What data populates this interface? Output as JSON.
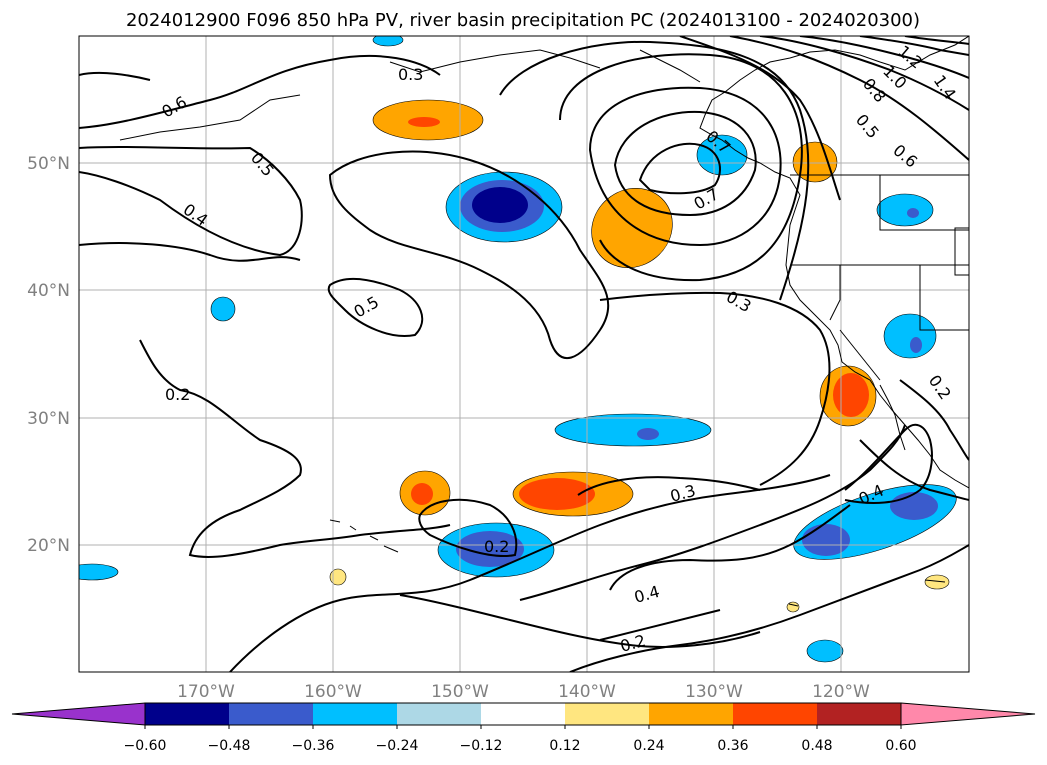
{
  "title": "2024012900 F096 850 hPa PV, river basin precipitation PC (2024013100 - 2024020300)",
  "chart_data": {
    "type": "heatmap",
    "map_projection": "lat-lon",
    "lon_range": [
      -180,
      -110
    ],
    "lat_range": [
      10,
      60
    ],
    "lat_ticks": [
      "50°N",
      "40°N",
      "30°N",
      "20°N"
    ],
    "lon_ticks": [
      "170°W",
      "160°W",
      "150°W",
      "140°W",
      "130°W",
      "120°W"
    ],
    "grid": true,
    "colorbar": {
      "ticks": [
        "−0.60",
        "−0.48",
        "−0.36",
        "−0.24",
        "−0.12",
        "0.12",
        "0.24",
        "0.36",
        "0.48",
        "0.60"
      ],
      "colors": [
        "#9932cc",
        "#00008b",
        "#3a5bcc",
        "#00bfff",
        "#add8e6",
        "#ffffff",
        "#ffe680",
        "#ffa500",
        "#ff4500",
        "#b22222",
        "#ff88aa"
      ],
      "extend": "both"
    },
    "contour_labels": [
      "0.6",
      "0.5",
      "0.4",
      "0.5",
      "0.2",
      "0.2",
      "0.3",
      "0.3",
      "0.4",
      "0.2",
      "0.7",
      "0.3",
      "0.6",
      "0.5",
      "0.8",
      "1.0",
      "1.2",
      "1.4",
      "0.7",
      "0.4",
      "0.2"
    ]
  }
}
